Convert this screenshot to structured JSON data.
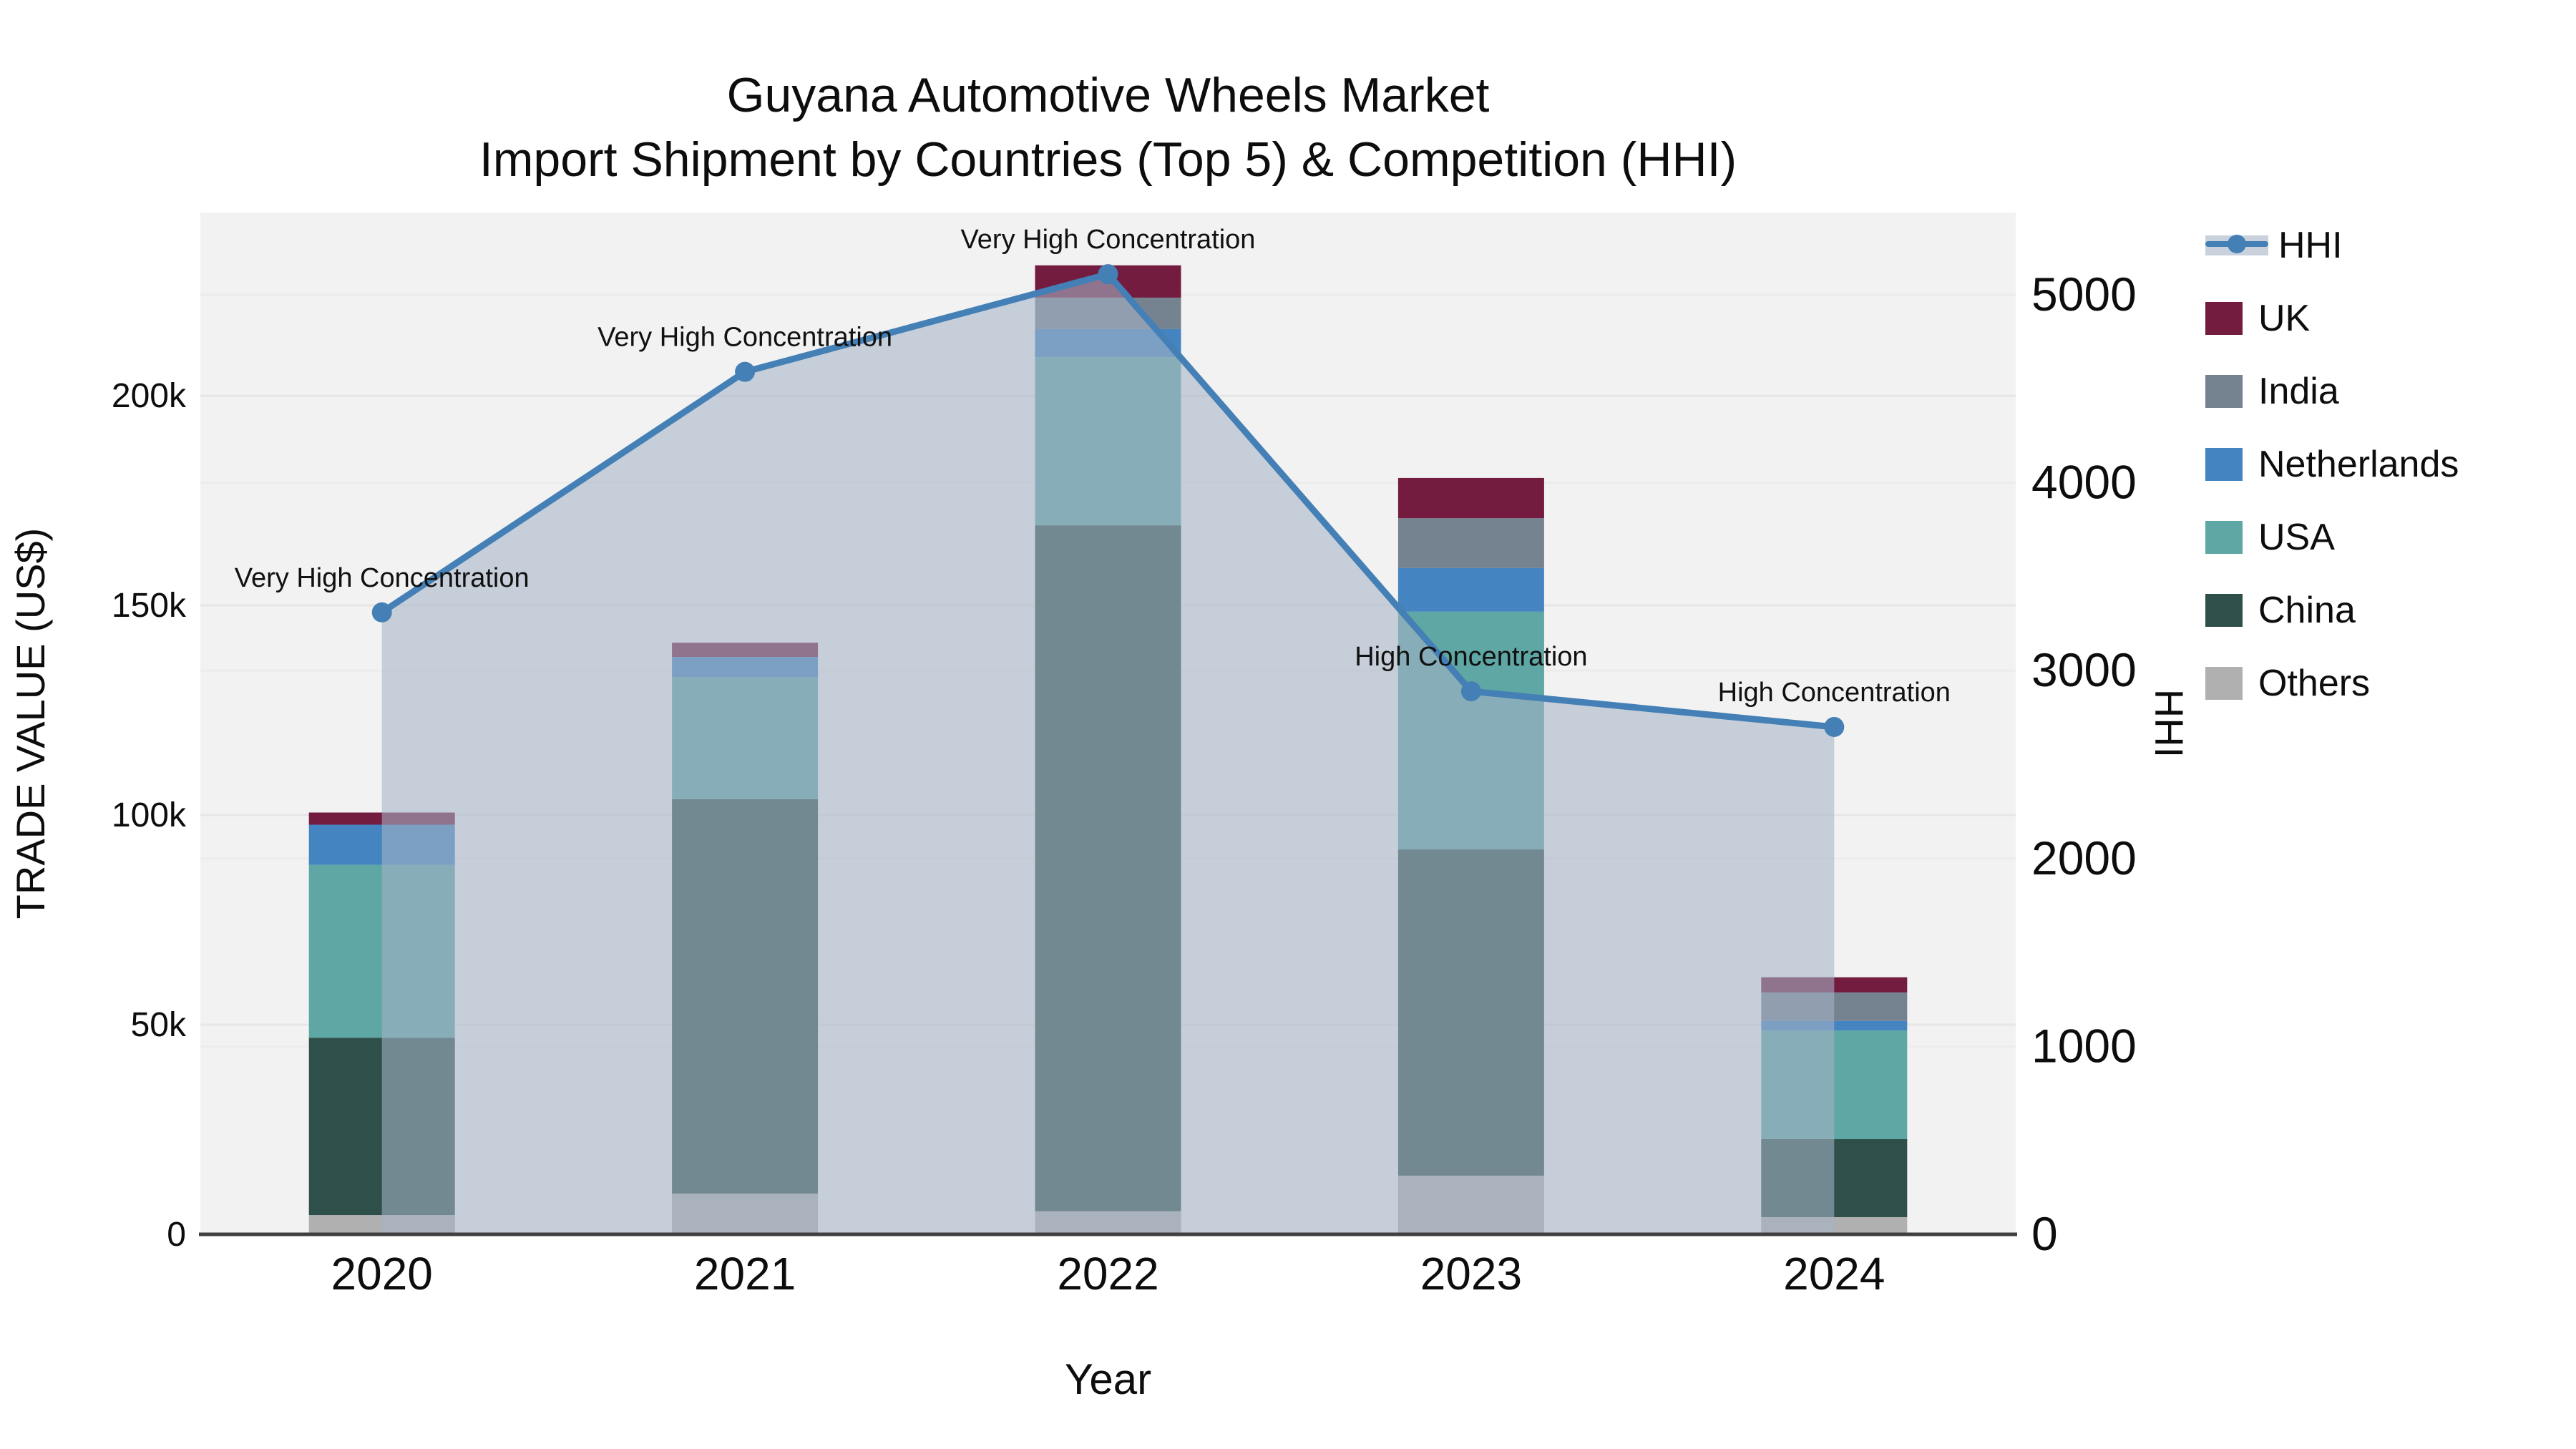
{
  "title": {
    "line1": "Guyana Automotive Wheels Market",
    "line2": "Import Shipment by Countries (Top 5) & Competition (HHI)"
  },
  "legend": {
    "items": [
      {
        "label": "HHI",
        "type": "line",
        "color": "#4480b6"
      },
      {
        "label": "UK",
        "type": "box",
        "color": "#731c3f"
      },
      {
        "label": "India",
        "type": "box",
        "color": "#75828f"
      },
      {
        "label": "Netherlands",
        "type": "box",
        "color": "#4484c0"
      },
      {
        "label": "USA",
        "type": "box",
        "color": "#5ea7a4"
      },
      {
        "label": "China",
        "type": "box",
        "color": "#2f4f4a"
      },
      {
        "label": "Others",
        "type": "box",
        "color": "#b0b0b0"
      }
    ]
  },
  "chart_data": {
    "type": "bar+line",
    "title": "Guyana Automotive Wheels Market — Import Shipment by Countries (Top 5) & Competition (HHI)",
    "categories": [
      "2020",
      "2021",
      "2022",
      "2023",
      "2024"
    ],
    "series": [
      {
        "name": "Others",
        "color": "#b0b0b0",
        "values": [
          4600,
          9700,
          5500,
          14000,
          4100
        ]
      },
      {
        "name": "China",
        "color": "#2f4f4a",
        "values": [
          42300,
          94100,
          163600,
          77800,
          18600
        ]
      },
      {
        "name": "USA",
        "color": "#5ea7a4",
        "values": [
          41200,
          29100,
          40100,
          56700,
          25900
        ]
      },
      {
        "name": "Netherlands",
        "color": "#4484c0",
        "values": [
          9600,
          4800,
          6700,
          10400,
          2300
        ]
      },
      {
        "name": "India",
        "color": "#75828f",
        "values": [
          0,
          0,
          7500,
          11900,
          6800
        ]
      },
      {
        "name": "UK",
        "color": "#731c3f",
        "values": [
          2900,
          3400,
          7700,
          9600,
          3600
        ]
      }
    ],
    "bar_totals": [
      100600,
      141100,
      231100,
      180400,
      61300
    ],
    "line_series": {
      "name": "HHI",
      "color": "#4480b6",
      "area_color": "rgba(166,180,198,0.58)",
      "values": [
        3310,
        4590,
        5110,
        2890,
        2700
      ]
    },
    "annotations": [
      "Very High Concentration",
      "Very High Concentration",
      "Very High Concentration",
      "High Concentration",
      "High Concentration"
    ],
    "axes": {
      "x": {
        "title": "Year"
      },
      "left": {
        "title": "TRADE VALUE (US$)",
        "max": 243700,
        "ticks": [
          {
            "v": 0,
            "label": "0"
          },
          {
            "v": 50000,
            "label": "50k"
          },
          {
            "v": 100000,
            "label": "100k"
          },
          {
            "v": 150000,
            "label": "150k"
          },
          {
            "v": 200000,
            "label": "200k"
          }
        ]
      },
      "right": {
        "title": "HHI",
        "max": 5438,
        "ticks": [
          {
            "v": 0,
            "label": "0"
          },
          {
            "v": 1000,
            "label": "1000"
          },
          {
            "v": 2000,
            "label": "2000"
          },
          {
            "v": 3000,
            "label": "3000"
          },
          {
            "v": 4000,
            "label": "4000"
          },
          {
            "v": 5000,
            "label": "5000"
          }
        ]
      }
    },
    "layout": {
      "plot_bg": "#f2f2f2",
      "grid_color": "#e6e6e6",
      "axisline_color": "#3f3f3f",
      "legend_position": "right",
      "grid": true
    }
  }
}
